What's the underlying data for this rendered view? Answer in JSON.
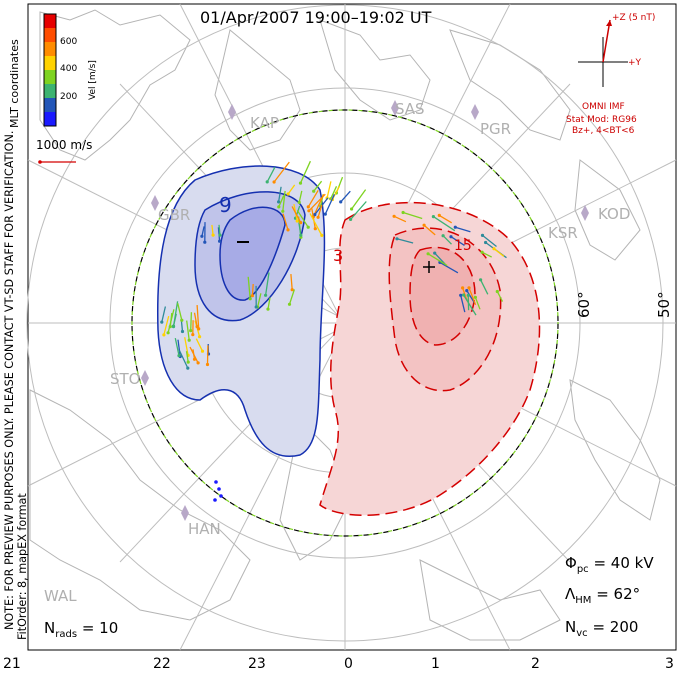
{
  "title": "01/Apr/2007  19:00–19:02  UT",
  "side_note_1": "NOTE: FOR PREVIEW PURPOSES ONLY. PLEASE CONTACT VT-SD STAFF FOR VERIFICATION.",
  "side_note_2": "FitOrder: 8,  mapEX format",
  "mlt_coordinates_label": "MLT coordinates",
  "velocity_scale": {
    "axis_label": "Vel [m/s]",
    "ticks": [
      "600",
      "400",
      "200"
    ],
    "colors": [
      "#e60000",
      "#ff8c00",
      "#ffd200",
      "#7ed321",
      "#3cb371",
      "#2e8b9a",
      "#2256b8",
      "#1a1aff"
    ]
  },
  "reference_vector_label": "1000 m/s",
  "imf": {
    "z_label": "+Z (5 nT)",
    "y_label": "+Y",
    "source_label": "OMNI IMF",
    "model_line_1": "Stat Mod: RG96",
    "model_line_2": "Bz+,  4<BT<6"
  },
  "stations": [
    "KAP",
    "SAS",
    "PGR",
    "GBR",
    "KOD",
    "KSR",
    "STO",
    "HAN",
    "WAL"
  ],
  "latitude_labels": [
    "60°",
    "50°"
  ],
  "mlt_ticks": [
    "21",
    "22",
    "23",
    "0",
    "1",
    "2",
    "3"
  ],
  "extrema_markers": {
    "min": "−",
    "max": "+"
  },
  "contour_labels": [
    "9",
    "3",
    "15"
  ],
  "stats": {
    "nrads_symbol": "N",
    "nrads_sub": "rads",
    "nrads_value": "= 10",
    "phi_symbol": "Φ",
    "phi_sub": "pc",
    "phi_value": "= 40 kV",
    "lambda_symbol": "Λ",
    "lambda_sub": "HM",
    "lambda_value": "= 62°",
    "nvc_symbol": "N",
    "nvc_sub": "vc",
    "nvc_value": "= 200"
  },
  "colors": {
    "negative_cell_line": "#1530b0",
    "negative_cell_fill": "#d8dcef",
    "negative_core_fill": "#a7abe6",
    "positive_cell_line": "#d40000",
    "positive_cell_fill": "#f6d6d6",
    "positive_core_fill": "#f0b1b1",
    "coastline": "#b4b4b4",
    "grid": "#bdbdbd",
    "station": "#b8a8c8"
  }
}
